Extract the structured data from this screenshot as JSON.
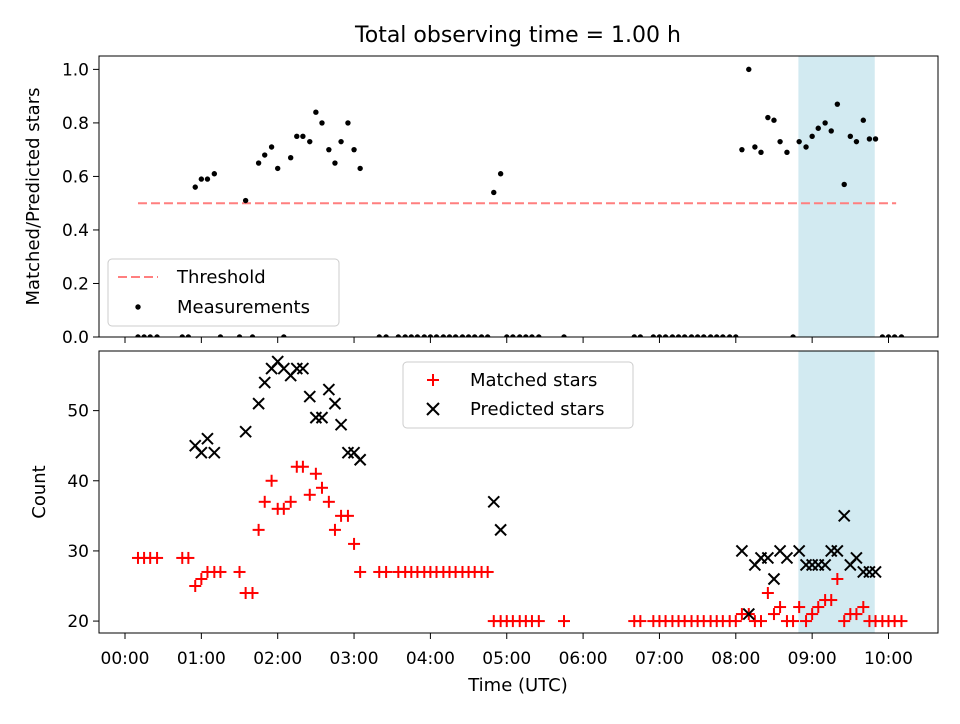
{
  "chart_data": {
    "title": "Total observing time = 1.00 h",
    "xlabel": "Time (UTC)",
    "x_tick_labels": [
      "00:00",
      "01:00",
      "02:00",
      "03:00",
      "04:00",
      "05:00",
      "06:00",
      "07:00",
      "08:00",
      "09:00",
      "10:00"
    ],
    "highlight_span": {
      "x": [
        8.82,
        9.82
      ],
      "color": "#add8e6"
    },
    "panels": [
      {
        "type": "scatter",
        "ylabel": "Matched/Predicted stars",
        "ylim": [
          0,
          1.05
        ],
        "y_tick_labels": [
          "0.0",
          "0.2",
          "0.4",
          "0.6",
          "0.8",
          "1.0"
        ],
        "legend": {
          "placement": "lower-left",
          "entries": [
            "Threshold",
            "Measurements"
          ]
        },
        "threshold": {
          "name": "Threshold",
          "value": 0.5,
          "x": [
            0.17,
            10.1
          ],
          "color": "#ff7f7f",
          "style": "dashed"
        },
        "measurements": {
          "name": "Measurements",
          "color": "#000000",
          "marker": "dot",
          "points": [
            [
              0.17,
              0
            ],
            [
              0.25,
              0
            ],
            [
              0.33,
              0
            ],
            [
              0.42,
              0
            ],
            [
              0.75,
              0
            ],
            [
              0.83,
              0
            ],
            [
              0.92,
              0.56
            ],
            [
              1.0,
              0.59
            ],
            [
              1.08,
              0.59
            ],
            [
              1.17,
              0.61
            ],
            [
              1.25,
              0
            ],
            [
              1.5,
              0
            ],
            [
              1.58,
              0.51
            ],
            [
              1.67,
              0
            ],
            [
              1.75,
              0.65
            ],
            [
              1.83,
              0.68
            ],
            [
              1.92,
              0.71
            ],
            [
              2.0,
              0.63
            ],
            [
              2.08,
              0
            ],
            [
              2.17,
              0.67
            ],
            [
              2.25,
              0.75
            ],
            [
              2.33,
              0.75
            ],
            [
              2.42,
              0.73
            ],
            [
              2.5,
              0.84
            ],
            [
              2.58,
              0.8
            ],
            [
              2.67,
              0.7
            ],
            [
              2.75,
              0.65
            ],
            [
              2.83,
              0.73
            ],
            [
              2.92,
              0.8
            ],
            [
              3.0,
              0.7
            ],
            [
              3.08,
              0.63
            ],
            [
              3.33,
              0
            ],
            [
              3.42,
              0
            ],
            [
              3.58,
              0
            ],
            [
              3.67,
              0
            ],
            [
              3.75,
              0
            ],
            [
              3.83,
              0
            ],
            [
              3.92,
              0
            ],
            [
              4.0,
              0
            ],
            [
              4.08,
              0
            ],
            [
              4.17,
              0
            ],
            [
              4.25,
              0
            ],
            [
              4.33,
              0
            ],
            [
              4.42,
              0
            ],
            [
              4.5,
              0
            ],
            [
              4.58,
              0
            ],
            [
              4.67,
              0
            ],
            [
              4.75,
              0
            ],
            [
              4.83,
              0.54
            ],
            [
              4.92,
              0.61
            ],
            [
              5.0,
              0
            ],
            [
              5.08,
              0
            ],
            [
              5.17,
              0
            ],
            [
              5.25,
              0
            ],
            [
              5.33,
              0
            ],
            [
              5.42,
              0
            ],
            [
              5.75,
              0
            ],
            [
              6.67,
              0
            ],
            [
              6.75,
              0
            ],
            [
              6.92,
              0
            ],
            [
              7.0,
              0
            ],
            [
              7.08,
              0
            ],
            [
              7.17,
              0
            ],
            [
              7.25,
              0
            ],
            [
              7.33,
              0
            ],
            [
              7.42,
              0
            ],
            [
              7.5,
              0
            ],
            [
              7.58,
              0
            ],
            [
              7.67,
              0
            ],
            [
              7.75,
              0
            ],
            [
              7.83,
              0
            ],
            [
              7.92,
              0
            ],
            [
              8.0,
              0
            ],
            [
              8.08,
              0.7
            ],
            [
              8.17,
              1.0
            ],
            [
              8.25,
              0.71
            ],
            [
              8.33,
              0.69
            ],
            [
              8.42,
              0.82
            ],
            [
              8.5,
              0.81
            ],
            [
              8.58,
              0.73
            ],
            [
              8.67,
              0.69
            ],
            [
              8.75,
              0
            ],
            [
              8.83,
              0.73
            ],
            [
              8.92,
              0.71
            ],
            [
              9.0,
              0.75
            ],
            [
              9.08,
              0.78
            ],
            [
              9.17,
              0.8
            ],
            [
              9.25,
              0.77
            ],
            [
              9.33,
              0.87
            ],
            [
              9.42,
              0.57
            ],
            [
              9.5,
              0.75
            ],
            [
              9.58,
              0.73
            ],
            [
              9.67,
              0.81
            ],
            [
              9.75,
              0.74
            ],
            [
              9.83,
              0.74
            ],
            [
              9.92,
              0
            ],
            [
              10.0,
              0
            ],
            [
              10.08,
              0
            ],
            [
              10.17,
              0
            ]
          ]
        }
      },
      {
        "type": "scatter",
        "ylabel": "Count",
        "ylim": [
          18.3,
          58.5
        ],
        "y_tick_labels": [
          "20",
          "30",
          "40",
          "50"
        ],
        "legend": {
          "placement": "upper-center",
          "entries": [
            "Matched stars",
            "Predicted stars"
          ]
        },
        "matched": {
          "name": "Matched stars",
          "color": "#ff0000",
          "marker": "plus",
          "points": [
            [
              0.17,
              29
            ],
            [
              0.25,
              29
            ],
            [
              0.33,
              29
            ],
            [
              0.42,
              29
            ],
            [
              0.75,
              29
            ],
            [
              0.83,
              29
            ],
            [
              0.92,
              25
            ],
            [
              1.0,
              26
            ],
            [
              1.08,
              27
            ],
            [
              1.17,
              27
            ],
            [
              1.25,
              27
            ],
            [
              1.5,
              27
            ],
            [
              1.58,
              24
            ],
            [
              1.67,
              24
            ],
            [
              1.75,
              33
            ],
            [
              1.83,
              37
            ],
            [
              1.92,
              40
            ],
            [
              2.0,
              36
            ],
            [
              2.08,
              36
            ],
            [
              2.17,
              37
            ],
            [
              2.25,
              42
            ],
            [
              2.33,
              42
            ],
            [
              2.42,
              38
            ],
            [
              2.5,
              41
            ],
            [
              2.58,
              39
            ],
            [
              2.67,
              37
            ],
            [
              2.75,
              33
            ],
            [
              2.83,
              35
            ],
            [
              2.92,
              35
            ],
            [
              3.0,
              31
            ],
            [
              3.08,
              27
            ],
            [
              3.33,
              27
            ],
            [
              3.42,
              27
            ],
            [
              3.58,
              27
            ],
            [
              3.67,
              27
            ],
            [
              3.75,
              27
            ],
            [
              3.83,
              27
            ],
            [
              3.92,
              27
            ],
            [
              4.0,
              27
            ],
            [
              4.08,
              27
            ],
            [
              4.17,
              27
            ],
            [
              4.25,
              27
            ],
            [
              4.33,
              27
            ],
            [
              4.42,
              27
            ],
            [
              4.5,
              27
            ],
            [
              4.58,
              27
            ],
            [
              4.67,
              27
            ],
            [
              4.75,
              27
            ],
            [
              4.83,
              20
            ],
            [
              4.92,
              20
            ],
            [
              5.0,
              20
            ],
            [
              5.08,
              20
            ],
            [
              5.17,
              20
            ],
            [
              5.25,
              20
            ],
            [
              5.33,
              20
            ],
            [
              5.42,
              20
            ],
            [
              5.75,
              20
            ],
            [
              6.67,
              20
            ],
            [
              6.75,
              20
            ],
            [
              6.92,
              20
            ],
            [
              7.0,
              20
            ],
            [
              7.08,
              20
            ],
            [
              7.17,
              20
            ],
            [
              7.25,
              20
            ],
            [
              7.33,
              20
            ],
            [
              7.42,
              20
            ],
            [
              7.5,
              20
            ],
            [
              7.58,
              20
            ],
            [
              7.67,
              20
            ],
            [
              7.75,
              20
            ],
            [
              7.83,
              20
            ],
            [
              7.92,
              20
            ],
            [
              8.0,
              20
            ],
            [
              8.08,
              21
            ],
            [
              8.17,
              21
            ],
            [
              8.25,
              20
            ],
            [
              8.33,
              20
            ],
            [
              8.42,
              24
            ],
            [
              8.5,
              21
            ],
            [
              8.58,
              22
            ],
            [
              8.67,
              20
            ],
            [
              8.75,
              20
            ],
            [
              8.83,
              22
            ],
            [
              8.92,
              20
            ],
            [
              9.0,
              21
            ],
            [
              9.08,
              22
            ],
            [
              9.17,
              23
            ],
            [
              9.25,
              23
            ],
            [
              9.33,
              26
            ],
            [
              9.42,
              20
            ],
            [
              9.5,
              21
            ],
            [
              9.58,
              21
            ],
            [
              9.67,
              22
            ],
            [
              9.75,
              20
            ],
            [
              9.83,
              20
            ],
            [
              9.92,
              20
            ],
            [
              10.0,
              20
            ],
            [
              10.08,
              20
            ],
            [
              10.17,
              20
            ]
          ]
        },
        "predicted": {
          "name": "Predicted stars",
          "color": "#000000",
          "marker": "x",
          "points": [
            [
              0.92,
              45
            ],
            [
              1.0,
              44
            ],
            [
              1.08,
              46
            ],
            [
              1.17,
              44
            ],
            [
              1.58,
              47
            ],
            [
              1.75,
              51
            ],
            [
              1.83,
              54
            ],
            [
              1.92,
              56
            ],
            [
              2.0,
              57
            ],
            [
              2.08,
              56
            ],
            [
              2.17,
              55
            ],
            [
              2.25,
              56
            ],
            [
              2.33,
              56
            ],
            [
              2.42,
              52
            ],
            [
              2.5,
              49
            ],
            [
              2.58,
              49
            ],
            [
              2.67,
              53
            ],
            [
              2.75,
              51
            ],
            [
              2.83,
              48
            ],
            [
              2.92,
              44
            ],
            [
              3.0,
              44
            ],
            [
              3.08,
              43
            ],
            [
              4.83,
              37
            ],
            [
              4.92,
              33
            ],
            [
              8.08,
              30
            ],
            [
              8.17,
              21
            ],
            [
              8.25,
              28
            ],
            [
              8.33,
              29
            ],
            [
              8.42,
              29
            ],
            [
              8.5,
              26
            ],
            [
              8.58,
              30
            ],
            [
              8.67,
              29
            ],
            [
              8.83,
              30
            ],
            [
              8.92,
              28
            ],
            [
              9.0,
              28
            ],
            [
              9.08,
              28
            ],
            [
              9.17,
              28
            ],
            [
              9.25,
              30
            ],
            [
              9.33,
              30
            ],
            [
              9.42,
              35
            ],
            [
              9.5,
              28
            ],
            [
              9.58,
              29
            ],
            [
              9.67,
              27
            ],
            [
              9.75,
              27
            ],
            [
              9.83,
              27
            ]
          ]
        }
      }
    ]
  }
}
